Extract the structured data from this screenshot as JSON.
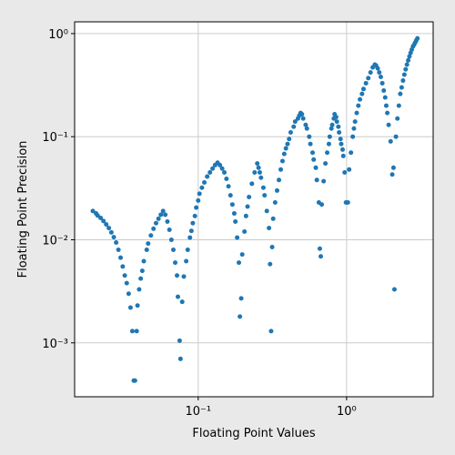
{
  "chart_data": {
    "type": "scatter",
    "xlabel": "Floating Point Values",
    "ylabel": "Floating Point Precision",
    "xscale": "log",
    "yscale": "log",
    "grid": true,
    "color": "#1f77b4",
    "xlim": [
      0.0147,
      3.83
    ],
    "ylim": [
      0.0003,
      1.3
    ],
    "xticks": [
      {
        "value": 0.1,
        "label": "10⁻¹"
      },
      {
        "value": 1,
        "label": "10⁰"
      }
    ],
    "yticks": [
      {
        "value": 0.001,
        "label": "10⁻³"
      },
      {
        "value": 0.01,
        "label": "10⁻²"
      },
      {
        "value": 0.1,
        "label": "10⁻¹"
      },
      {
        "value": 1,
        "label": "10⁰"
      }
    ],
    "x": [
      0.0195,
      0.0205,
      0.021,
      0.022,
      0.023,
      0.024,
      0.025,
      0.026,
      0.027,
      0.028,
      0.029,
      0.03,
      0.031,
      0.032,
      0.033,
      0.034,
      0.035,
      0.036,
      0.0368,
      0.0375,
      0.0385,
      0.039,
      0.04,
      0.041,
      0.042,
      0.043,
      0.045,
      0.046,
      0.048,
      0.05,
      0.052,
      0.054,
      0.056,
      0.058,
      0.06,
      0.062,
      0.064,
      0.066,
      0.068,
      0.07,
      0.072,
      0.073,
      0.075,
      0.076,
      0.078,
      0.08,
      0.083,
      0.085,
      0.088,
      0.09,
      0.092,
      0.095,
      0.097,
      0.1,
      0.102,
      0.106,
      0.11,
      0.115,
      0.12,
      0.125,
      0.13,
      0.135,
      0.14,
      0.145,
      0.15,
      0.155,
      0.16,
      0.165,
      0.17,
      0.175,
      0.178,
      0.183,
      0.188,
      0.191,
      0.195,
      0.198,
      0.205,
      0.21,
      0.215,
      0.22,
      0.23,
      0.24,
      0.25,
      0.255,
      0.26,
      0.265,
      0.275,
      0.28,
      0.29,
      0.3,
      0.305,
      0.31,
      0.315,
      0.32,
      0.33,
      0.34,
      0.35,
      0.36,
      0.37,
      0.38,
      0.39,
      0.4,
      0.41,
      0.42,
      0.44,
      0.45,
      0.47,
      0.48,
      0.49,
      0.5,
      0.51,
      0.53,
      0.54,
      0.56,
      0.57,
      0.59,
      0.6,
      0.62,
      0.63,
      0.65,
      0.66,
      0.67,
      0.68,
      0.7,
      0.72,
      0.74,
      0.76,
      0.77,
      0.79,
      0.8,
      0.82,
      0.83,
      0.85,
      0.86,
      0.88,
      0.89,
      0.91,
      0.92,
      0.94,
      0.95,
      0.97,
      0.99,
      1.02,
      1.04,
      1.07,
      1.1,
      1.12,
      1.14,
      1.17,
      1.2,
      1.23,
      1.27,
      1.3,
      1.35,
      1.4,
      1.45,
      1.5,
      1.55,
      1.58,
      1.62,
      1.66,
      1.7,
      1.74,
      1.78,
      1.82,
      1.85,
      1.88,
      1.92,
      1.98,
      2.03,
      2.07,
      2.1,
      2.15,
      2.2,
      2.25,
      2.3,
      2.35,
      2.4,
      2.45,
      2.5,
      2.55,
      2.6,
      2.65,
      2.7,
      2.75,
      2.8,
      2.85,
      2.9,
      2.95,
      3.0
    ],
    "values": [
      0.019,
      0.018,
      0.0172,
      0.0163,
      0.0152,
      0.0141,
      0.013,
      0.0118,
      0.0106,
      0.0094,
      0.008,
      0.0067,
      0.0055,
      0.0045,
      0.0038,
      0.003,
      0.0022,
      0.0013,
      0.00043,
      0.00043,
      0.0013,
      0.0023,
      0.0033,
      0.0042,
      0.005,
      0.0062,
      0.008,
      0.0092,
      0.011,
      0.0128,
      0.0145,
      0.016,
      0.0175,
      0.019,
      0.0175,
      0.015,
      0.0125,
      0.01,
      0.008,
      0.006,
      0.0045,
      0.0028,
      0.00105,
      0.0007,
      0.0025,
      0.0044,
      0.0062,
      0.008,
      0.0105,
      0.0122,
      0.0145,
      0.017,
      0.0205,
      0.024,
      0.028,
      0.032,
      0.036,
      0.041,
      0.045,
      0.049,
      0.053,
      0.056,
      0.053,
      0.049,
      0.045,
      0.039,
      0.033,
      0.027,
      0.022,
      0.018,
      0.015,
      0.0105,
      0.006,
      0.0018,
      0.0027,
      0.0072,
      0.012,
      0.017,
      0.021,
      0.026,
      0.035,
      0.045,
      0.055,
      0.05,
      0.045,
      0.04,
      0.032,
      0.027,
      0.019,
      0.013,
      0.0058,
      0.0013,
      0.0085,
      0.016,
      0.023,
      0.03,
      0.038,
      0.048,
      0.058,
      0.068,
      0.077,
      0.085,
      0.095,
      0.11,
      0.125,
      0.14,
      0.15,
      0.16,
      0.17,
      0.165,
      0.15,
      0.13,
      0.12,
      0.1,
      0.085,
      0.07,
      0.06,
      0.05,
      0.038,
      0.023,
      0.0082,
      0.0069,
      0.022,
      0.037,
      0.055,
      0.07,
      0.085,
      0.1,
      0.12,
      0.13,
      0.15,
      0.165,
      0.155,
      0.14,
      0.125,
      0.11,
      0.095,
      0.085,
      0.075,
      0.065,
      0.045,
      0.023,
      0.023,
      0.048,
      0.07,
      0.1,
      0.12,
      0.14,
      0.17,
      0.2,
      0.23,
      0.26,
      0.29,
      0.33,
      0.37,
      0.42,
      0.47,
      0.5,
      0.49,
      0.46,
      0.42,
      0.38,
      0.33,
      0.28,
      0.24,
      0.2,
      0.17,
      0.13,
      0.09,
      0.043,
      0.05,
      0.0033,
      0.1,
      0.15,
      0.2,
      0.26,
      0.3,
      0.35,
      0.4,
      0.45,
      0.5,
      0.55,
      0.6,
      0.65,
      0.7,
      0.75,
      0.78,
      0.82,
      0.86,
      0.9
    ]
  }
}
